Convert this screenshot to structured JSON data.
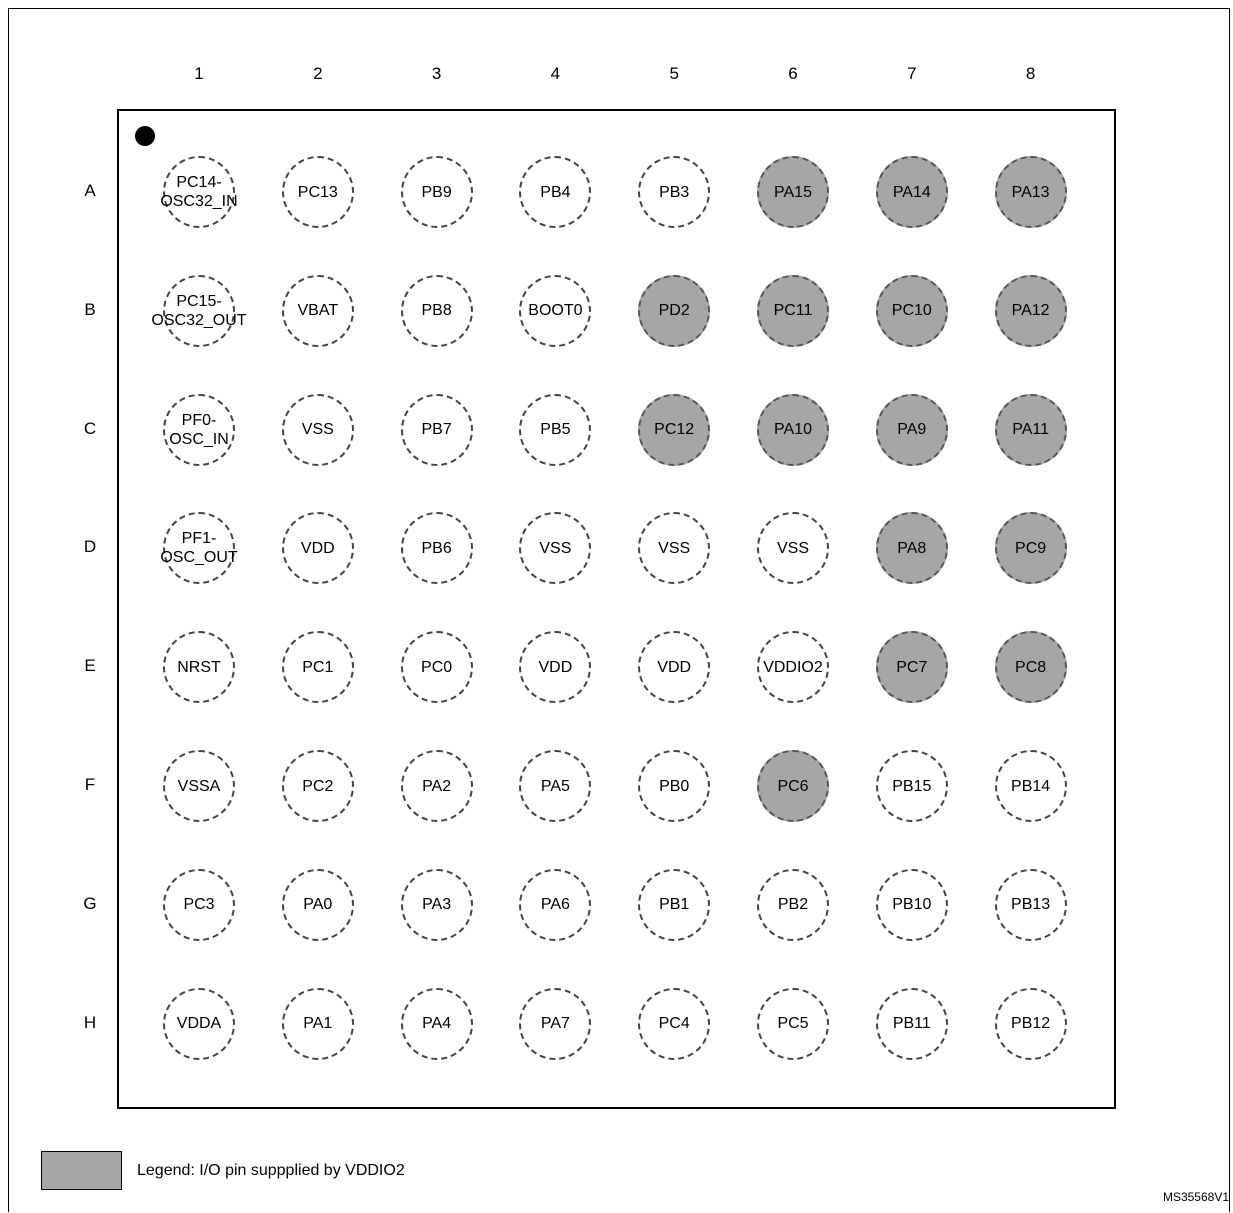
{
  "columns": [
    "1",
    "2",
    "3",
    "4",
    "5",
    "6",
    "7",
    "8"
  ],
  "rows": [
    {
      "label": "A",
      "pins": [
        {
          "name": "PC14-\nOSC32_IN",
          "vddio2": false
        },
        {
          "name": "PC13",
          "vddio2": false
        },
        {
          "name": "PB9",
          "vddio2": false
        },
        {
          "name": "PB4",
          "vddio2": false
        },
        {
          "name": "PB3",
          "vddio2": false
        },
        {
          "name": "PA15",
          "vddio2": true
        },
        {
          "name": "PA14",
          "vddio2": true
        },
        {
          "name": "PA13",
          "vddio2": true
        }
      ]
    },
    {
      "label": "B",
      "pins": [
        {
          "name": "PC15-\nOSC32_OUT",
          "vddio2": false
        },
        {
          "name": "VBAT",
          "vddio2": false
        },
        {
          "name": "PB8",
          "vddio2": false
        },
        {
          "name": "BOOT0",
          "vddio2": false
        },
        {
          "name": "PD2",
          "vddio2": true
        },
        {
          "name": "PC11",
          "vddio2": true
        },
        {
          "name": "PC10",
          "vddio2": true
        },
        {
          "name": "PA12",
          "vddio2": true
        }
      ]
    },
    {
      "label": "C",
      "pins": [
        {
          "name": "PF0-\nOSC_IN",
          "vddio2": false
        },
        {
          "name": "VSS",
          "vddio2": false
        },
        {
          "name": "PB7",
          "vddio2": false
        },
        {
          "name": "PB5",
          "vddio2": false
        },
        {
          "name": "PC12",
          "vddio2": true
        },
        {
          "name": "PA10",
          "vddio2": true
        },
        {
          "name": "PA9",
          "vddio2": true
        },
        {
          "name": "PA11",
          "vddio2": true
        }
      ]
    },
    {
      "label": "D",
      "pins": [
        {
          "name": "PF1-\nOSC_OUT",
          "vddio2": false
        },
        {
          "name": "VDD",
          "vddio2": false
        },
        {
          "name": "PB6",
          "vddio2": false
        },
        {
          "name": "VSS",
          "vddio2": false
        },
        {
          "name": "VSS",
          "vddio2": false
        },
        {
          "name": "VSS",
          "vddio2": false
        },
        {
          "name": "PA8",
          "vddio2": true
        },
        {
          "name": "PC9",
          "vddio2": true
        }
      ]
    },
    {
      "label": "E",
      "pins": [
        {
          "name": "NRST",
          "vddio2": false
        },
        {
          "name": "PC1",
          "vddio2": false
        },
        {
          "name": "PC0",
          "vddio2": false
        },
        {
          "name": "VDD",
          "vddio2": false
        },
        {
          "name": "VDD",
          "vddio2": false
        },
        {
          "name": "VDDIO2",
          "vddio2": false
        },
        {
          "name": "PC7",
          "vddio2": true
        },
        {
          "name": "PC8",
          "vddio2": true
        }
      ]
    },
    {
      "label": "F",
      "pins": [
        {
          "name": "VSSA",
          "vddio2": false
        },
        {
          "name": "PC2",
          "vddio2": false
        },
        {
          "name": "PA2",
          "vddio2": false
        },
        {
          "name": "PA5",
          "vddio2": false
        },
        {
          "name": "PB0",
          "vddio2": false
        },
        {
          "name": "PC6",
          "vddio2": true
        },
        {
          "name": "PB15",
          "vddio2": false
        },
        {
          "name": "PB14",
          "vddio2": false
        }
      ]
    },
    {
      "label": "G",
      "pins": [
        {
          "name": "PC3",
          "vddio2": false
        },
        {
          "name": "PA0",
          "vddio2": false
        },
        {
          "name": "PA3",
          "vddio2": false
        },
        {
          "name": "PA6",
          "vddio2": false
        },
        {
          "name": "PB1",
          "vddio2": false
        },
        {
          "name": "PB2",
          "vddio2": false
        },
        {
          "name": "PB10",
          "vddio2": false
        },
        {
          "name": "PB13",
          "vddio2": false
        }
      ]
    },
    {
      "label": "H",
      "pins": [
        {
          "name": "VDDA",
          "vddio2": false
        },
        {
          "name": "PA1",
          "vddio2": false
        },
        {
          "name": "PA4",
          "vddio2": false
        },
        {
          "name": "PA7",
          "vddio2": false
        },
        {
          "name": "PC4",
          "vddio2": false
        },
        {
          "name": "PC5",
          "vddio2": false
        },
        {
          "name": "PB11",
          "vddio2": false
        },
        {
          "name": "PB12",
          "vddio2": false
        }
      ]
    }
  ],
  "legend": {
    "text": "Legend: I/O pin suppplied by VDDIO2",
    "color": "#a6a6a6"
  },
  "figure_id": "MS35568V1"
}
